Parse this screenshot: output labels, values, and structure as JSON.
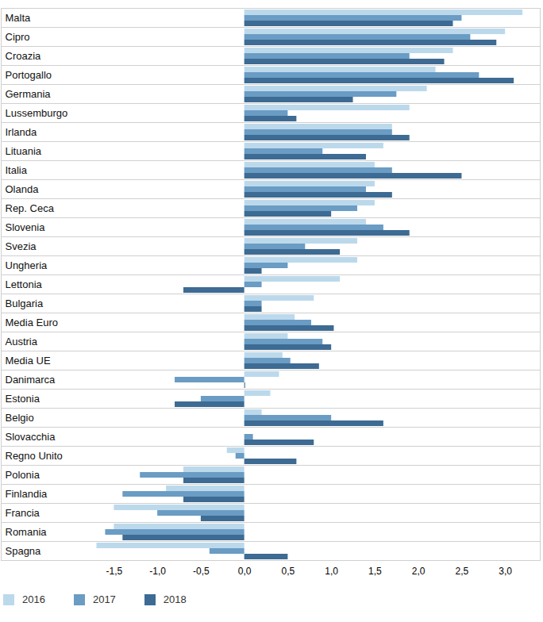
{
  "chart_data": {
    "type": "bar",
    "orientation": "horizontal",
    "categories": [
      "Malta",
      "Cipro",
      "Croazia",
      "Portogallo",
      "Germania",
      "Lussemburgo",
      "Irlanda",
      "Lituania",
      "Italia",
      "Olanda",
      "Rep. Ceca",
      "Slovenia",
      "Svezia",
      "Ungheria",
      "Lettonia",
      "Bulgaria",
      "Media Euro",
      "Austria",
      "Media UE",
      "Danimarca",
      "Estonia",
      "Belgio",
      "Slovacchia",
      "Regno Unito",
      "Polonia",
      "Finlandia",
      "Francia",
      "Romania",
      "Spagna"
    ],
    "series": [
      {
        "name": "2016",
        "color": "#bcd9ec",
        "values": [
          3.2,
          3.0,
          2.4,
          2.2,
          2.1,
          1.9,
          1.7,
          1.6,
          1.5,
          1.5,
          1.5,
          1.4,
          1.3,
          1.3,
          1.1,
          0.8,
          0.58,
          0.5,
          0.44,
          0.4,
          0.3,
          0.2,
          0.0,
          -0.2,
          -0.7,
          -0.9,
          -1.5,
          -1.5,
          -1.7
        ]
      },
      {
        "name": "2017",
        "color": "#6a9cc4",
        "values": [
          2.5,
          2.6,
          1.9,
          2.7,
          1.75,
          0.5,
          1.7,
          0.9,
          1.7,
          1.4,
          1.3,
          1.6,
          0.7,
          0.5,
          0.2,
          0.2,
          0.77,
          0.9,
          0.53,
          -0.8,
          -0.5,
          1.0,
          0.1,
          -0.1,
          -1.2,
          -1.4,
          -1.0,
          -1.6,
          -0.4
        ]
      },
      {
        "name": "2018",
        "color": "#3d6b93",
        "values": [
          2.4,
          2.9,
          2.3,
          3.1,
          1.25,
          0.6,
          1.9,
          1.4,
          2.5,
          1.7,
          1.0,
          1.9,
          1.1,
          0.2,
          -0.7,
          0.2,
          1.03,
          1.0,
          0.86,
          0.01,
          -0.8,
          1.6,
          0.8,
          0.6,
          -0.7,
          -0.7,
          -0.5,
          -1.4,
          0.5
        ]
      }
    ],
    "xlim": [
      -2.8,
      3.4
    ],
    "xticks": [
      {
        "value": -1.5,
        "label": "-1,5"
      },
      {
        "value": -1.0,
        "label": "-1,0"
      },
      {
        "value": -0.5,
        "label": "-0,5"
      },
      {
        "value": 0,
        "label": "0,0"
      },
      {
        "value": 0.5,
        "label": "0,5"
      },
      {
        "value": 1.0,
        "label": "1,0"
      },
      {
        "value": 1.5,
        "label": "1,5"
      },
      {
        "value": 2.0,
        "label": "2,0"
      },
      {
        "value": 2.5,
        "label": "2,5"
      },
      {
        "value": 3.0,
        "label": "3,0"
      }
    ],
    "grid": false,
    "legend": "bottom-left"
  }
}
